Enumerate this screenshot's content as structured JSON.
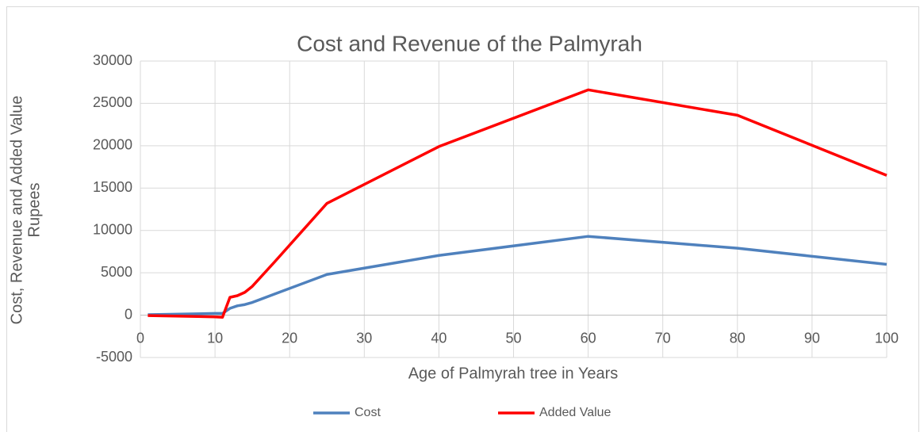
{
  "chart_data": {
    "type": "line",
    "title": "Cost and Revenue of the Palmyrah",
    "xlabel": "Age of Palmyrah tree in Years",
    "ylabel": [
      "Cost, Revenue and Added Value",
      "Rupees"
    ],
    "x": [
      1,
      10,
      11,
      12,
      13,
      14,
      15,
      18,
      25,
      40,
      60,
      80,
      100
    ],
    "series": [
      {
        "name": "Cost",
        "color": "#4f81bd",
        "values": [
          50,
          200,
          200,
          800,
          1100,
          1250,
          1500,
          2500,
          4800,
          7050,
          9300,
          7900,
          6000
        ]
      },
      {
        "name": "Added Value",
        "color": "#ff0000",
        "values": [
          -50,
          -200,
          -250,
          2100,
          2300,
          2700,
          3400,
          6300,
          13200,
          19900,
          26600,
          23600,
          16500
        ]
      }
    ],
    "xlim": [
      0,
      100
    ],
    "xticks": [
      0,
      10,
      20,
      30,
      40,
      50,
      60,
      70,
      80,
      90,
      100
    ],
    "ylim": [
      -5000,
      30000
    ],
    "yticks": [
      -5000,
      0,
      5000,
      10000,
      15000,
      20000,
      25000,
      30000
    ],
    "grid": true,
    "legend": "bottom"
  }
}
